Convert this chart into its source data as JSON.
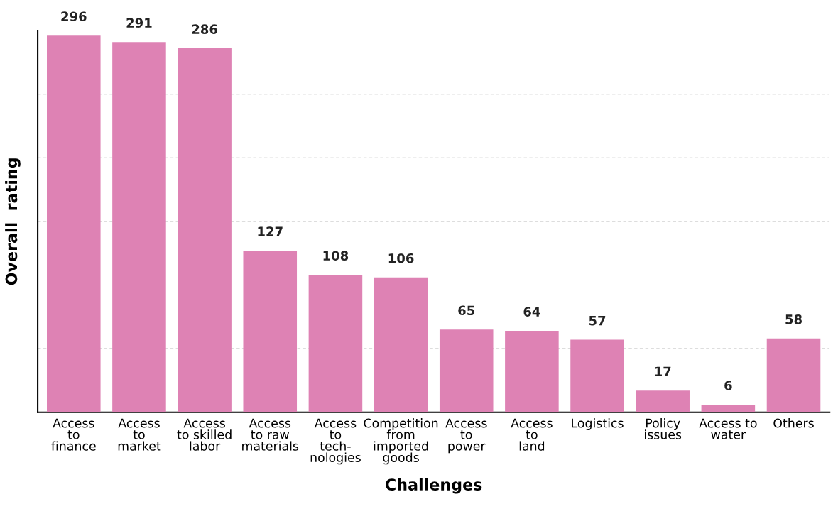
{
  "chart_data": {
    "type": "bar",
    "xlabel": "Challenges",
    "ylabel": "Overall  rating",
    "categories": [
      "Access\nto\nfinance",
      "Access\nto\nmarket",
      "Access\nto skilled\nlabor",
      "Access\nto raw\nmaterials",
      "Access\nto\ntech-\nnologies",
      "Competition\nfrom\nimported\ngoods",
      "Access\nto\npower",
      "Access\nto\nland",
      "Logistics",
      "Policy\nissues",
      "Access to\nwater",
      "Others"
    ],
    "values": [
      296,
      291,
      286,
      127,
      108,
      106,
      65,
      64,
      57,
      17,
      6,
      58
    ],
    "color": "#de82b4",
    "data_labels": true,
    "ylim": [
      0,
      300
    ],
    "yticks": [
      {
        "value": 0,
        "label": null
      },
      {
        "value": 50,
        "label": null
      },
      {
        "value": 100,
        "label": null
      },
      {
        "value": 150,
        "label": null
      },
      {
        "value": 200,
        "label": null
      },
      {
        "value": 250,
        "label": null
      },
      {
        "value": 300,
        "label": null
      }
    ],
    "grid": "y"
  }
}
